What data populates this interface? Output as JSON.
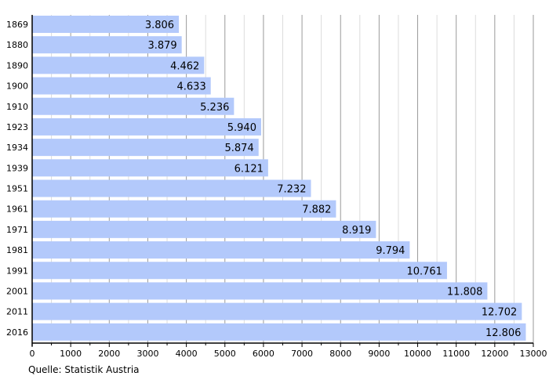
{
  "chart_data": {
    "type": "bar",
    "orientation": "horizontal",
    "categories": [
      "1869",
      "1880",
      "1890",
      "1900",
      "1910",
      "1923",
      "1934",
      "1939",
      "1951",
      "1961",
      "1971",
      "1981",
      "1991",
      "2001",
      "2011",
      "2016"
    ],
    "values": [
      3806,
      3879,
      4462,
      4633,
      5236,
      5940,
      5874,
      6121,
      7232,
      7882,
      8919,
      9794,
      10761,
      11808,
      12702,
      12806
    ],
    "value_labels": [
      "3.806",
      "3.879",
      "4.462",
      "4.633",
      "5.236",
      "5.940",
      "5.874",
      "6.121",
      "7.232",
      "7.882",
      "8.919",
      "9.794",
      "10.761",
      "11.808",
      "12.702",
      "12.806"
    ],
    "xlim": [
      0,
      13000
    ],
    "x_ticks": [
      0,
      1000,
      2000,
      3000,
      4000,
      5000,
      6000,
      7000,
      8000,
      9000,
      10000,
      11000,
      12000,
      13000
    ],
    "grid": true,
    "bar_color": "#b3c9fb",
    "source": "Quelle: Statistik Austria"
  }
}
